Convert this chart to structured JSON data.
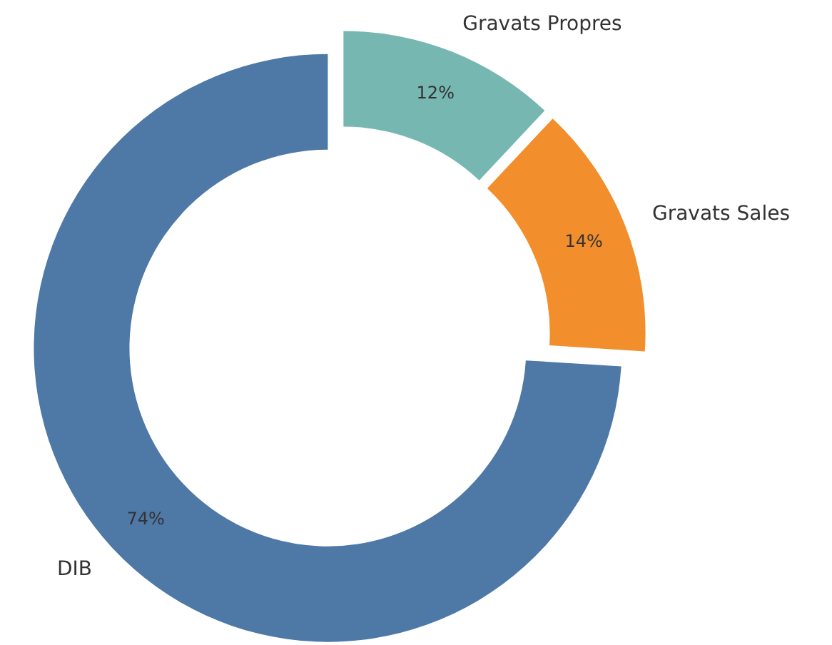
{
  "chart_data": {
    "type": "donut",
    "categories": [
      "DIB",
      "Gravats Sales",
      "Gravats Propres"
    ],
    "values": [
      74,
      14,
      12
    ],
    "colors": [
      "#4e79a7",
      "#f28e2b",
      "#76b7b2"
    ],
    "value_labels": [
      "74%",
      "14%",
      "12%"
    ]
  }
}
